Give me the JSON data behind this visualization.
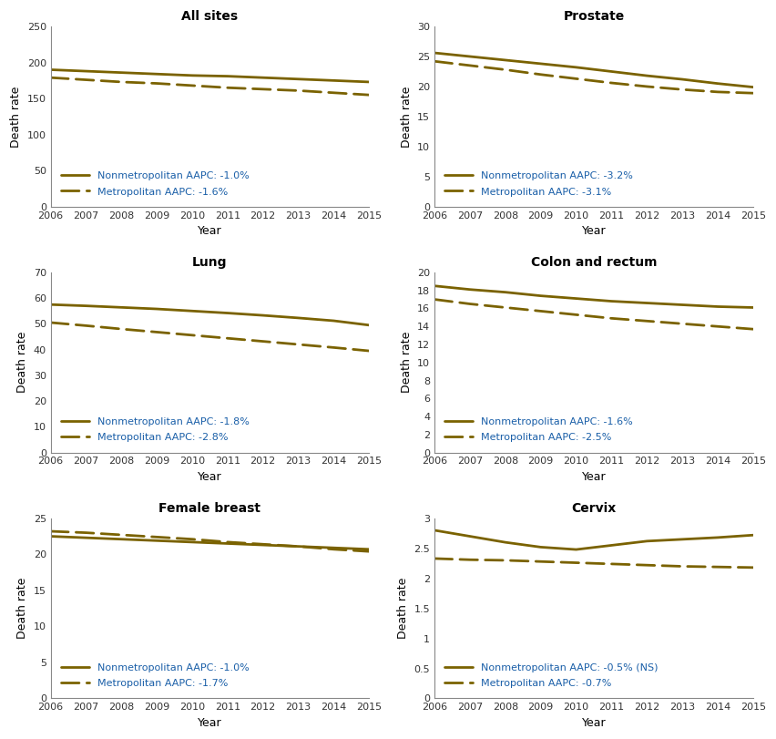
{
  "years": [
    2006,
    2007,
    2008,
    2009,
    2010,
    2011,
    2012,
    2013,
    2014,
    2015
  ],
  "panels": [
    {
      "title": "All sites",
      "nonmetro": [
        190,
        188,
        186,
        184,
        182,
        181,
        179,
        177,
        175,
        173
      ],
      "metro": [
        179,
        176,
        173,
        171,
        168,
        165,
        163,
        161,
        158,
        155
      ],
      "ylim": [
        0,
        250
      ],
      "yticks": [
        0,
        50,
        100,
        150,
        200,
        250
      ],
      "nonmetro_aapc": "-1.0%",
      "metro_aapc": "-1.6%"
    },
    {
      "title": "Prostate",
      "nonmetro": [
        25.6,
        25.0,
        24.4,
        23.8,
        23.2,
        22.5,
        21.8,
        21.2,
        20.5,
        19.9
      ],
      "metro": [
        24.2,
        23.5,
        22.8,
        22.0,
        21.3,
        20.6,
        20.0,
        19.5,
        19.1,
        18.9
      ],
      "ylim": [
        0,
        30
      ],
      "yticks": [
        0,
        5,
        10,
        15,
        20,
        25,
        30
      ],
      "nonmetro_aapc": "-3.2%",
      "metro_aapc": "-3.1%"
    },
    {
      "title": "Lung",
      "nonmetro": [
        57.5,
        57.0,
        56.4,
        55.8,
        55.0,
        54.2,
        53.3,
        52.3,
        51.2,
        49.5
      ],
      "metro": [
        50.5,
        49.3,
        48.0,
        46.8,
        45.6,
        44.4,
        43.2,
        42.0,
        40.8,
        39.5
      ],
      "ylim": [
        0,
        70
      ],
      "yticks": [
        0,
        10,
        20,
        30,
        40,
        50,
        60,
        70
      ],
      "nonmetro_aapc": "-1.8%",
      "metro_aapc": "-2.8%"
    },
    {
      "title": "Colon and rectum",
      "nonmetro": [
        18.5,
        18.1,
        17.8,
        17.4,
        17.1,
        16.8,
        16.6,
        16.4,
        16.2,
        16.1
      ],
      "metro": [
        17.0,
        16.5,
        16.1,
        15.7,
        15.3,
        14.9,
        14.6,
        14.3,
        14.0,
        13.7
      ],
      "ylim": [
        0,
        20
      ],
      "yticks": [
        0,
        2,
        4,
        6,
        8,
        10,
        12,
        14,
        16,
        18,
        20
      ],
      "nonmetro_aapc": "-1.6%",
      "metro_aapc": "-2.5%"
    },
    {
      "title": "Female breast",
      "nonmetro": [
        22.5,
        22.3,
        22.1,
        21.9,
        21.7,
        21.5,
        21.3,
        21.1,
        20.9,
        20.7
      ],
      "metro": [
        23.2,
        23.0,
        22.7,
        22.4,
        22.1,
        21.7,
        21.4,
        21.1,
        20.7,
        20.4
      ],
      "ylim": [
        0,
        25
      ],
      "yticks": [
        0,
        5,
        10,
        15,
        20,
        25
      ],
      "nonmetro_aapc": "-1.0%",
      "metro_aapc": "-1.7%"
    },
    {
      "title": "Cervix",
      "nonmetro": [
        2.8,
        2.7,
        2.6,
        2.52,
        2.48,
        2.55,
        2.62,
        2.65,
        2.68,
        2.72
      ],
      "metro": [
        2.33,
        2.31,
        2.3,
        2.28,
        2.26,
        2.24,
        2.22,
        2.2,
        2.19,
        2.18
      ],
      "ylim": [
        0,
        3
      ],
      "yticks": [
        0,
        0.5,
        1.0,
        1.5,
        2.0,
        2.5,
        3.0
      ],
      "nonmetro_aapc": "-0.5% (NS)",
      "metro_aapc": "-0.7%"
    }
  ],
  "line_color": "#7a6200",
  "xlabel": "Year",
  "ylabel": "Death rate",
  "title_fontsize": 10,
  "label_fontsize": 9,
  "tick_fontsize": 8,
  "legend_fontsize": 8,
  "legend_text_color": "#1a5fa8",
  "spine_color": "#888888"
}
